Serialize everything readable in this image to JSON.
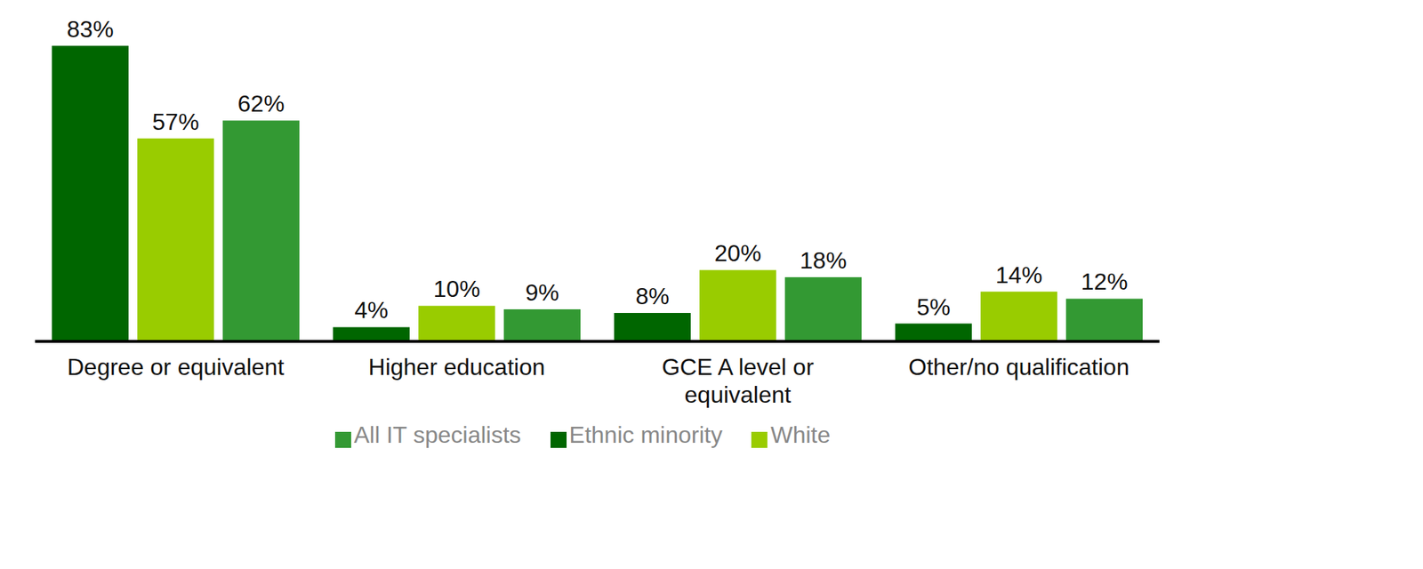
{
  "chart_data": {
    "type": "bar",
    "categories": [
      "Degree or equivalent",
      "Higher education",
      "GCE A level or equivalent",
      "Other/no qualification"
    ],
    "series": [
      {
        "name": "Ethnic minority",
        "color": "#006600",
        "values": [
          83,
          4,
          8,
          5
        ],
        "value_labels": [
          "83%",
          "4%",
          "8%",
          "5%"
        ]
      },
      {
        "name": "White",
        "color": "#99cc00",
        "values": [
          57,
          10,
          20,
          14
        ],
        "value_labels": [
          "57%",
          "10%",
          "20%",
          "14%"
        ]
      },
      {
        "name": "All IT specialists",
        "color": "#339933",
        "values": [
          62,
          9,
          18,
          12
        ],
        "value_labels": [
          "62%",
          "9%",
          "18%",
          "12%"
        ]
      }
    ],
    "ylim": [
      0,
      85
    ],
    "data_labels": true,
    "tick_labels": "x",
    "legend": "bottom"
  }
}
